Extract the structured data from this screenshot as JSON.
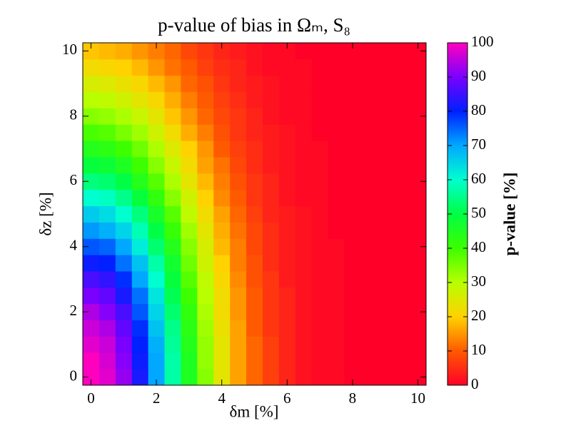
{
  "chart_data": {
    "type": "heatmap",
    "title": "p-value of bias in Ωₘ, S₈",
    "xlabel": "δm [%]",
    "ylabel": "δz [%]",
    "colorbar_label": "p-value [%]",
    "x": [
      0,
      0.5,
      1,
      1.5,
      2,
      2.5,
      3,
      3.5,
      4,
      4.5,
      5,
      5.5,
      6,
      6.5,
      7,
      7.5,
      8,
      8.5,
      9,
      9.5,
      10
    ],
    "y": [
      0,
      0.5,
      1,
      1.5,
      2,
      2.5,
      3,
      3.5,
      4,
      4.5,
      5,
      5.5,
      6,
      6.5,
      7,
      7.5,
      8,
      8.5,
      9,
      9.5,
      10
    ],
    "z": [
      [
        100,
        98,
        92,
        82,
        70,
        57,
        45,
        34,
        24,
        16,
        11,
        7,
        4,
        2,
        1,
        1,
        0,
        0,
        0,
        0,
        0
      ],
      [
        100,
        97,
        91,
        81,
        70,
        57,
        45,
        33,
        24,
        16,
        11,
        7,
        4,
        2,
        1,
        1,
        0,
        0,
        0,
        0,
        0
      ],
      [
        98,
        96,
        90,
        80,
        69,
        56,
        44,
        33,
        24,
        16,
        11,
        7,
        4,
        2,
        1,
        1,
        0,
        0,
        0,
        0,
        0
      ],
      [
        96,
        94,
        88,
        79,
        67,
        55,
        43,
        32,
        23,
        16,
        10,
        6,
        4,
        2,
        1,
        1,
        0,
        0,
        0,
        0,
        0
      ],
      [
        94,
        91,
        86,
        76,
        65,
        53,
        42,
        31,
        22,
        15,
        10,
        6,
        4,
        2,
        1,
        1,
        0,
        0,
        0,
        0,
        0
      ],
      [
        90,
        88,
        82,
        74,
        63,
        51,
        40,
        30,
        22,
        15,
        10,
        6,
        4,
        2,
        1,
        1,
        0,
        0,
        0,
        0,
        0
      ],
      [
        86,
        84,
        79,
        70,
        60,
        49,
        38,
        29,
        21,
        14,
        9,
        6,
        3,
        2,
        1,
        1,
        0,
        0,
        0,
        0,
        0
      ],
      [
        81,
        80,
        74,
        67,
        57,
        47,
        36,
        27,
        20,
        13,
        9,
        5,
        3,
        2,
        1,
        1,
        0,
        0,
        0,
        0,
        0
      ],
      [
        76,
        75,
        70,
        62,
        53,
        44,
        34,
        26,
        18,
        13,
        8,
        5,
        3,
        2,
        1,
        1,
        0,
        0,
        0,
        0,
        0
      ],
      [
        71,
        69,
        65,
        58,
        50,
        41,
        32,
        24,
        17,
        12,
        8,
        5,
        3,
        2,
        1,
        0,
        0,
        0,
        0,
        0,
        0
      ],
      [
        66,
        64,
        60,
        54,
        46,
        38,
        29,
        22,
        16,
        11,
        7,
        4,
        3,
        2,
        1,
        0,
        0,
        0,
        0,
        0,
        0
      ],
      [
        60,
        59,
        55,
        49,
        42,
        34,
        27,
        20,
        14,
        10,
        6,
        4,
        2,
        1,
        1,
        0,
        0,
        0,
        0,
        0,
        0
      ],
      [
        54,
        53,
        50,
        44,
        38,
        31,
        24,
        18,
        13,
        9,
        6,
        4,
        2,
        1,
        1,
        0,
        0,
        0,
        0,
        0,
        0
      ],
      [
        49,
        48,
        45,
        40,
        34,
        28,
        22,
        16,
        12,
        8,
        5,
        3,
        2,
        1,
        1,
        0,
        0,
        0,
        0,
        0,
        0
      ],
      [
        44,
        43,
        40,
        36,
        31,
        25,
        20,
        15,
        10,
        7,
        5,
        3,
        2,
        1,
        1,
        0,
        0,
        0,
        0,
        0,
        0
      ],
      [
        39,
        38,
        35,
        32,
        27,
        22,
        17,
        13,
        9,
        6,
        4,
        3,
        2,
        1,
        0,
        0,
        0,
        0,
        0,
        0,
        0
      ],
      [
        34,
        33,
        31,
        28,
        24,
        19,
        15,
        11,
        8,
        6,
        4,
        2,
        1,
        1,
        0,
        0,
        0,
        0,
        0,
        0,
        0
      ],
      [
        30,
        29,
        27,
        24,
        21,
        17,
        13,
        10,
        7,
        5,
        3,
        2,
        1,
        1,
        0,
        0,
        0,
        0,
        0,
        0,
        0
      ],
      [
        26,
        25,
        23,
        21,
        18,
        15,
        11,
        9,
        6,
        4,
        3,
        2,
        1,
        1,
        0,
        0,
        0,
        0,
        0,
        0,
        0
      ],
      [
        22,
        21,
        20,
        18,
        15,
        12,
        10,
        7,
        5,
        4,
        2,
        1,
        1,
        1,
        0,
        0,
        0,
        0,
        0,
        0,
        0
      ],
      [
        19,
        18,
        17,
        15,
        13,
        11,
        8,
        6,
        4,
        3,
        2,
        1,
        1,
        0,
        0,
        0,
        0,
        0,
        0,
        0,
        0
      ]
    ],
    "xlim": [
      -0.25,
      10.25
    ],
    "ylim": [
      -0.25,
      10.25
    ],
    "xticks": [
      0,
      2,
      4,
      6,
      8,
      10
    ],
    "yticks": [
      0,
      2,
      4,
      6,
      8,
      10
    ],
    "zlim": [
      0,
      100
    ],
    "zticks": [
      0,
      10,
      20,
      30,
      40,
      50,
      60,
      70,
      80,
      90,
      100
    ],
    "colormap": [
      "#ff0028",
      "#ff5a00",
      "#ffd200",
      "#b8ff00",
      "#3cff00",
      "#00ff44",
      "#00ffd0",
      "#00a8ff",
      "#0020ff",
      "#7a00ff",
      "#ff00bf"
    ]
  }
}
